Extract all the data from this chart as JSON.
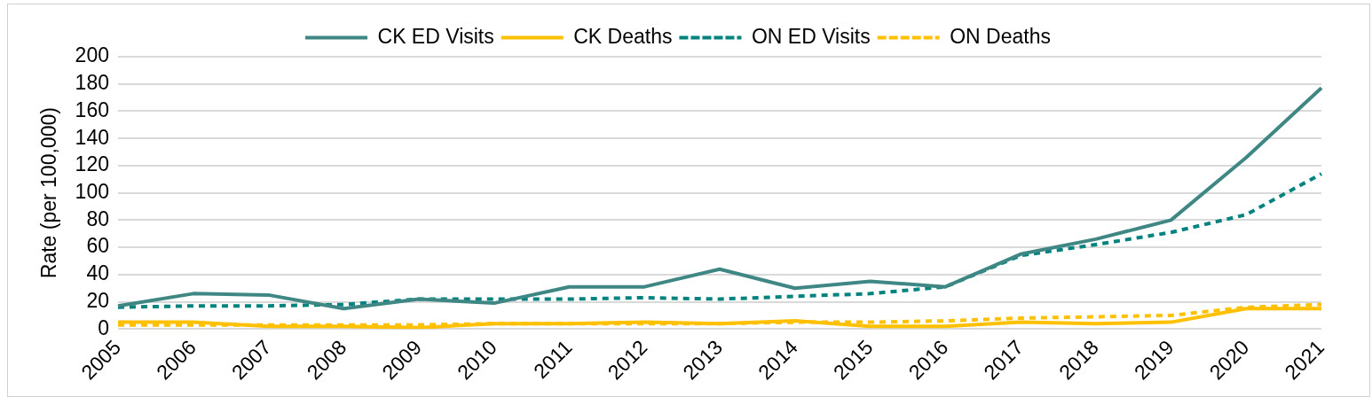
{
  "chart_data": {
    "type": "line",
    "ylabel": "Rate (per 100,000)",
    "categories": [
      "2005",
      "2006",
      "2007",
      "2008",
      "2009",
      "2010",
      "2011",
      "2012",
      "2013",
      "2014",
      "2015",
      "2016",
      "2017",
      "2018",
      "2019",
      "2020",
      "2021"
    ],
    "series": [
      {
        "name": "CK ED Visits",
        "color": "#3f8784",
        "line_style": "solid",
        "values": [
          17,
          26,
          25,
          15,
          22,
          19,
          31,
          31,
          44,
          30,
          35,
          31,
          55,
          66,
          80,
          126,
          177
        ]
      },
      {
        "name": "CK Deaths",
        "color": "#ffc000",
        "line_style": "solid",
        "values": [
          5,
          5,
          2,
          2,
          1,
          4,
          4,
          5,
          4,
          6,
          2,
          2,
          5,
          4,
          5,
          15,
          15
        ]
      },
      {
        "name": "ON ED Visits",
        "color": "#00827f",
        "line_style": "dashed",
        "values": [
          16,
          17,
          17,
          18,
          22,
          22,
          22,
          23,
          22,
          24,
          26,
          31,
          54,
          62,
          71,
          84,
          114
        ]
      },
      {
        "name": "ON Deaths",
        "color": "#ffc000",
        "line_style": "dashed",
        "values": [
          3,
          3,
          3,
          3,
          3,
          4,
          4,
          4,
          4,
          5,
          5,
          6,
          8,
          9,
          10,
          16,
          18
        ]
      }
    ],
    "ylim": [
      0,
      200
    ],
    "yticks": [
      0,
      20,
      40,
      60,
      80,
      100,
      120,
      140,
      160,
      180,
      200
    ],
    "grid": "y",
    "legend": "top",
    "marker": "none"
  }
}
